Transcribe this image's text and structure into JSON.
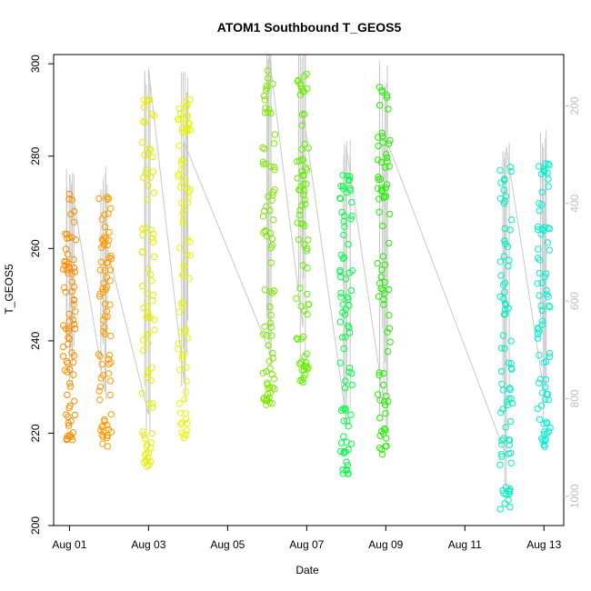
{
  "chart_data": {
    "type": "scatter",
    "title": "ATOM1 Southbound T_GEOS5",
    "xlabel": "Date",
    "ylabel": "T_GEOS5",
    "x_ticks": [
      {
        "day": 1,
        "label": "Aug 01"
      },
      {
        "day": 3,
        "label": "Aug 03"
      },
      {
        "day": 5,
        "label": "Aug 05"
      },
      {
        "day": 7,
        "label": "Aug 07"
      },
      {
        "day": 9,
        "label": "Aug 09"
      },
      {
        "day": 11,
        "label": "Aug 11"
      },
      {
        "day": 13,
        "label": "Aug 13"
      }
    ],
    "xlim": [
      0.6,
      13.5
    ],
    "ylim": [
      200,
      302
    ],
    "y_ticks": [
      200,
      220,
      240,
      260,
      280,
      300
    ],
    "y2_ticks": [
      200,
      400,
      600,
      800,
      1000
    ],
    "y2lim": [
      95,
      1060
    ],
    "y2_reversed": true,
    "grid": false,
    "colors": {
      "axis": "#000000",
      "secondary_axis": "#bebebe",
      "profile_line": "#c8c8c8"
    },
    "flights": [
      {
        "day": 1.0,
        "t_min": 218,
        "t_max": 272,
        "color": "#ff8c00"
      },
      {
        "day": 1.9,
        "t_min": 217,
        "t_max": 272,
        "color": "#ff9a00"
      },
      {
        "day": 3.0,
        "t_min": 212,
        "t_max": 295,
        "color": "#e6ec00"
      },
      {
        "day": 3.9,
        "t_min": 219,
        "t_max": 293,
        "color": "#e8f500"
      },
      {
        "day": 6.05,
        "t_min": 226,
        "t_max": 300,
        "color": "#7ee800"
      },
      {
        "day": 6.9,
        "t_min": 231,
        "t_max": 300,
        "color": "#66ee00"
      },
      {
        "day": 8.0,
        "t_min": 211,
        "t_max": 278,
        "color": "#00ff44"
      },
      {
        "day": 8.95,
        "t_min": 215,
        "t_max": 295,
        "color": "#22f000"
      },
      {
        "day": 12.05,
        "t_min": 203,
        "t_max": 278,
        "color": "#00eec0"
      },
      {
        "day": 13.0,
        "t_min": 217,
        "t_max": 280,
        "color": "#00f0d0"
      }
    ]
  }
}
